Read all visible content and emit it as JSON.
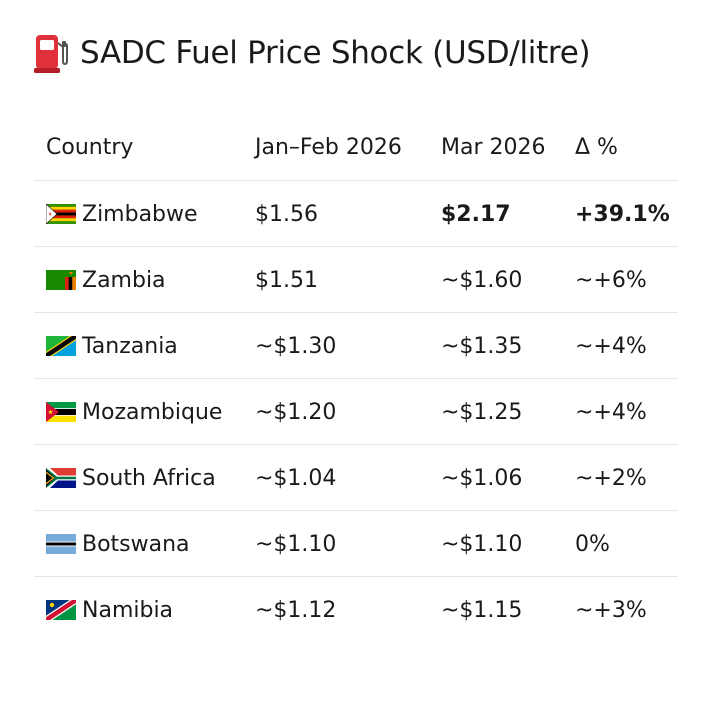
{
  "title": "SADC Fuel Price Shock (USD/litre)",
  "title_icon": "fuel-pump-icon",
  "columns": {
    "country": "Country",
    "jan_feb": "Jan–Feb 2026",
    "mar": "Mar 2026",
    "delta": "Δ %"
  },
  "rows": [
    {
      "flag": "zimbabwe-flag-icon",
      "country": "Zimbabwe",
      "jan_feb": "$1.56",
      "mar": "$2.17",
      "delta": "+39.1%",
      "highlight": true
    },
    {
      "flag": "zambia-flag-icon",
      "country": "Zambia",
      "jan_feb": "$1.51",
      "mar": "~$1.60",
      "delta": "~+6%"
    },
    {
      "flag": "tanzania-flag-icon",
      "country": "Tanzania",
      "jan_feb": "~$1.30",
      "mar": "~$1.35",
      "delta": "~+4%"
    },
    {
      "flag": "mozambique-flag-icon",
      "country": "Mozambique",
      "jan_feb": "~$1.20",
      "mar": "~$1.25",
      "delta": "~+4%"
    },
    {
      "flag": "south-africa-flag-icon",
      "country": "South Africa",
      "jan_feb": "~$1.04",
      "mar": "~$1.06",
      "delta": "~+2%"
    },
    {
      "flag": "botswana-flag-icon",
      "country": "Botswana",
      "jan_feb": "~$1.10",
      "mar": "~$1.10",
      "delta": "0%"
    },
    {
      "flag": "namibia-flag-icon",
      "country": "Namibia",
      "jan_feb": "~$1.12",
      "mar": "~$1.15",
      "delta": "~+3%"
    }
  ],
  "colors": {
    "pump_red": "#e0303a",
    "divider": "#e6e6e6",
    "text": "#1a1a1a"
  }
}
